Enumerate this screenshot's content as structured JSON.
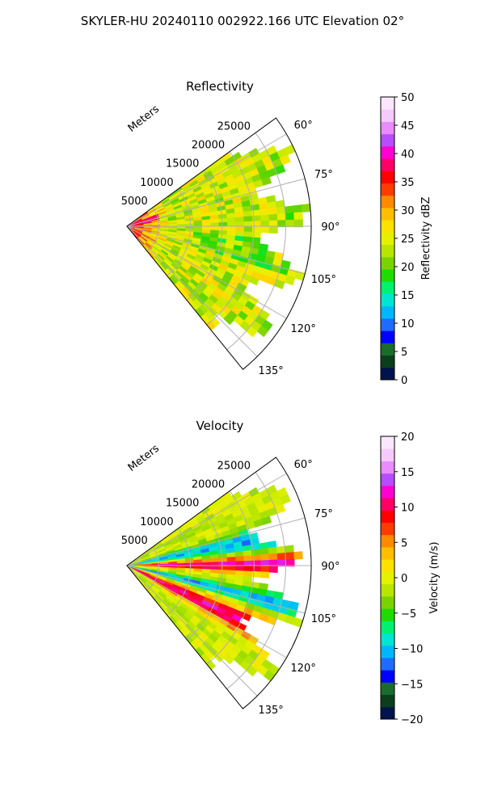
{
  "figure": {
    "title": "SKYLER-HU  20240110  002922.166 UTC Elevation 02°"
  },
  "chart_data": [
    {
      "type": "heatmap",
      "projection": "polar-sector",
      "title": "Reflectivity",
      "range_label": "Meters",
      "range_ticks": [
        5000,
        10000,
        15000,
        20000,
        25000
      ],
      "max_range": 29000,
      "azimuth_range": [
        54,
        141
      ],
      "azimuth_ticks": [
        "60°",
        "75°",
        "90°",
        "105°",
        "120°",
        "135°"
      ],
      "azimuth_tick_values": [
        60,
        75,
        90,
        105,
        120,
        135
      ],
      "grid": true,
      "colorbar": {
        "label": "Reflectivity dBZ",
        "min": 0,
        "max": 50,
        "ticks": [
          "0",
          "5",
          "10",
          "15",
          "20",
          "25",
          "30",
          "35",
          "40",
          "45",
          "50"
        ],
        "tick_values": [
          0,
          5,
          10,
          15,
          20,
          25,
          30,
          35,
          40,
          45,
          50
        ],
        "colors": [
          "#00134d",
          "#0b3f1b",
          "#1a6c2c",
          "#0000ff",
          "#1f6bff",
          "#00b7ff",
          "#00e5d0",
          "#00f070",
          "#1fdc00",
          "#7ad300",
          "#b8e600",
          "#e4f200",
          "#ffe100",
          "#ffbf00",
          "#ff8a00",
          "#ff3c00",
          "#ff0000",
          "#ff0066",
          "#ff00d0",
          "#b84cff",
          "#e88cff",
          "#f6c9ff",
          "#fbe6ff"
        ]
      },
      "field_summary": "Near-range core 30–40 dBZ, mostly 20–30 dBZ at mid/far range"
    },
    {
      "type": "heatmap",
      "projection": "polar-sector",
      "title": "Velocity",
      "range_label": "Meters",
      "range_ticks": [
        5000,
        10000,
        15000,
        20000,
        25000
      ],
      "max_range": 29000,
      "azimuth_range": [
        54,
        141
      ],
      "azimuth_ticks": [
        "60°",
        "75°",
        "90°",
        "105°",
        "120°",
        "135°"
      ],
      "azimuth_tick_values": [
        60,
        75,
        90,
        105,
        120,
        135
      ],
      "grid": true,
      "colorbar": {
        "label": "Velocity (m/s)",
        "min": -20,
        "max": 20,
        "ticks": [
          "−20",
          "−15",
          "−10",
          "−5",
          "0",
          "5",
          "10",
          "15",
          "20"
        ],
        "tick_values": [
          -20,
          -15,
          -10,
          -5,
          0,
          5,
          10,
          15,
          20
        ],
        "colors": [
          "#00134d",
          "#0b3f1b",
          "#1a6c2c",
          "#0000ff",
          "#1f6bff",
          "#00b7ff",
          "#00e5d0",
          "#00f070",
          "#1fdc00",
          "#7ad300",
          "#b8e600",
          "#e4f200",
          "#ffe100",
          "#ffbf00",
          "#ff8a00",
          "#ff3c00",
          "#ff0000",
          "#ff0066",
          "#ff00d0",
          "#b84cff",
          "#e88cff",
          "#f6c9ff",
          "#fbe6ff"
        ]
      },
      "field_summary": "Inbound (-10 m/s) band near 75–80°, outbound (+10 to +15 m/s) bands near 90° and 115°"
    }
  ]
}
